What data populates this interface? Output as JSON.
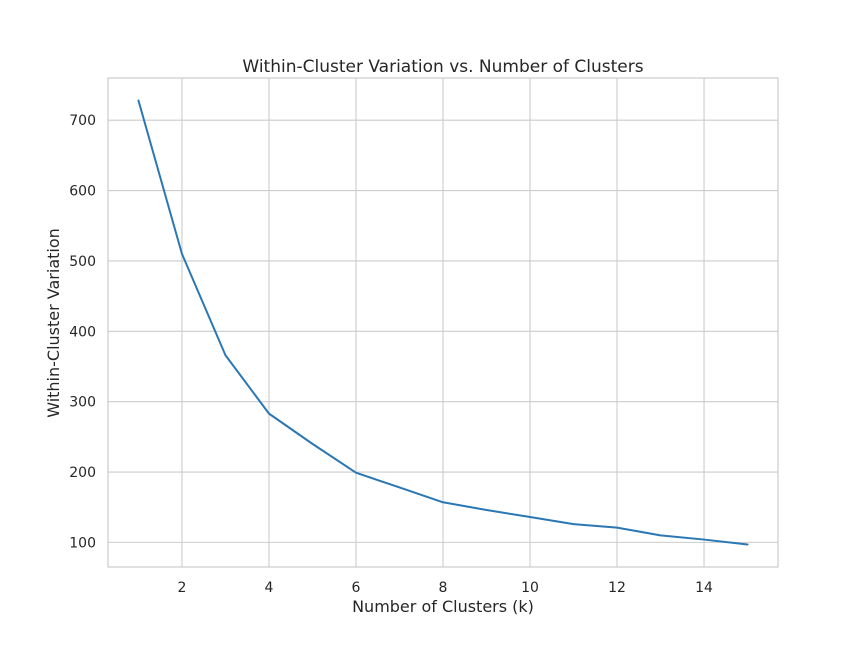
{
  "chart_data": {
    "type": "line",
    "title": "Within-Cluster Variation vs. Number of Clusters",
    "xlabel": "Number of Clusters (k)",
    "ylabel": "Within-Cluster Variation",
    "xlim": [
      0.3,
      15.7
    ],
    "ylim": [
      65,
      760
    ],
    "xticks": [
      2,
      4,
      6,
      8,
      10,
      12,
      14
    ],
    "yticks": [
      100,
      200,
      300,
      400,
      500,
      600,
      700
    ],
    "grid": true,
    "legend": "none",
    "series": [
      {
        "color": "#2a77b4",
        "x": [
          1,
          2,
          3,
          4,
          5,
          6,
          7,
          8,
          9,
          10,
          11,
          12,
          13,
          14,
          15
        ],
        "y": [
          728,
          510,
          366,
          283,
          240,
          199,
          178,
          157,
          146,
          136,
          126,
          121,
          110,
          104,
          97
        ]
      }
    ]
  }
}
